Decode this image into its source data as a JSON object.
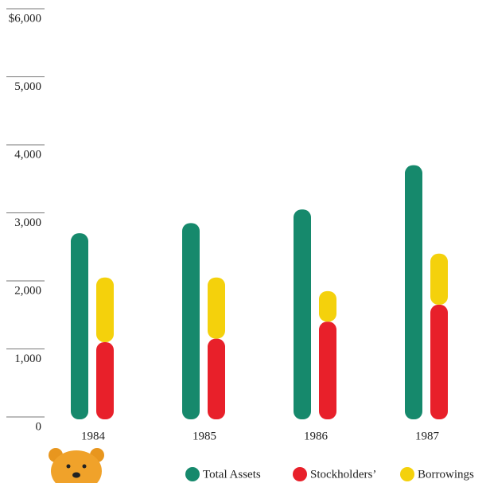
{
  "chart_data": {
    "type": "bar",
    "categories": [
      "1984",
      "1985",
      "1986",
      "1987"
    ],
    "series": [
      {
        "name": "Total Assets",
        "color": "#16896c",
        "values": [
          2700,
          2850,
          3050,
          3700
        ]
      },
      {
        "name": "Stockholders’",
        "color": "#e8202a",
        "values": [
          1100,
          1150,
          1400,
          1650
        ]
      },
      {
        "name": "Borrowings",
        "color": "#f4d10c",
        "values": [
          950,
          900,
          450,
          750
        ]
      }
    ],
    "ylim": [
      0,
      6000
    ],
    "yticks": [
      0,
      {
        "value": 1000,
        "label": "1,000"
      },
      {
        "value": 2000,
        "label": "2,000"
      },
      {
        "value": 3000,
        "label": "3,000"
      },
      {
        "value": 4000,
        "label": "4,000"
      },
      {
        "value": 5000,
        "label": "5,000"
      },
      {
        "value": 6000,
        "label": "$6,000"
      }
    ]
  }
}
